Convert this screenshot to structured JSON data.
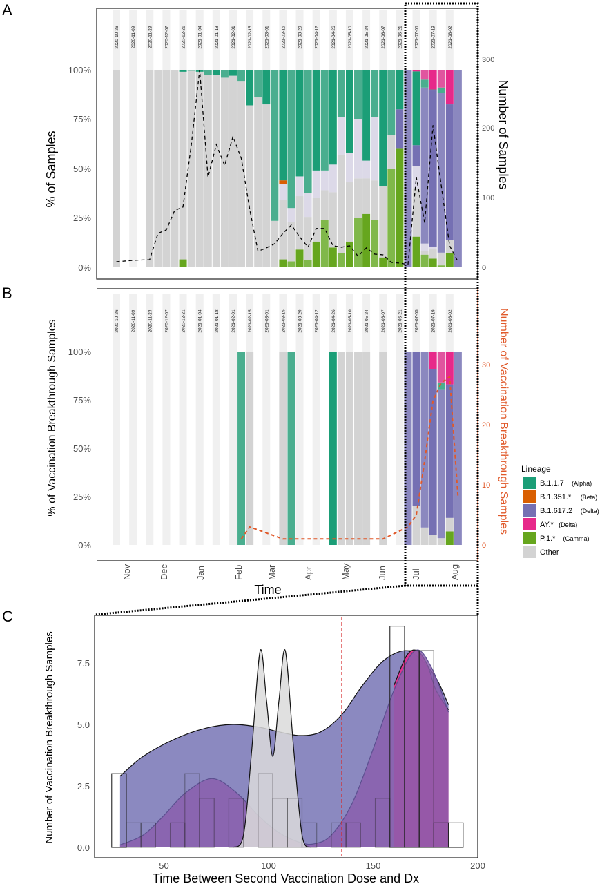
{
  "colors": {
    "alpha": "#1b9e77",
    "beta": "#d95f02",
    "delta": "#7570b3",
    "ay": "#e7298a",
    "gamma": "#66a61e",
    "other": "#d3d3d3",
    "unlabeled": "#dcd9e8",
    "stripe": "#f0f0f0",
    "count_line_b": "#e0592a",
    "delta_density": "#8b89c0",
    "second_density": "#8a5fad",
    "cutoff_line": "#d62728"
  },
  "panels": {
    "a": "A",
    "b": "B",
    "c": "C"
  },
  "chart_data": [
    {
      "type": "bar",
      "stacked": true,
      "panel": "A",
      "ylabel": "% of Samples",
      "y2label": "Number of Samples",
      "ylim": [
        0,
        100
      ],
      "y2lim": [
        0,
        300
      ],
      "yticks": [
        "0%",
        "25%",
        "50%",
        "75%",
        "100%"
      ],
      "y2ticks": [
        "0",
        "100",
        "200",
        "300"
      ],
      "week_labels": [
        "2020-10-26",
        "2020-11-09",
        "2020-11-23",
        "2020-12-07",
        "2020-12-21",
        "2021-01-04",
        "2021-01-18",
        "2021-02-01",
        "2021-02-15",
        "2021-03-01",
        "2021-03-15",
        "2021-03-29",
        "2021-04-12",
        "2021-04-26",
        "2021-05-10",
        "2021-05-24",
        "2021-06-07",
        "2021-06-21",
        "2021-07-05",
        "2021-07-19",
        "2021-08-02"
      ],
      "stack_order": [
        "gamma",
        "other",
        "unlabeled",
        "delta",
        "beta",
        "alpha",
        "ay"
      ],
      "weeks": [
        {
          "other": 100
        },
        null,
        null,
        null,
        {
          "other": 100
        },
        {
          "other": 100
        },
        {
          "other": 100
        },
        {
          "other": 100
        },
        {
          "gamma": 4,
          "other": 95,
          "alpha": 1
        },
        {
          "other": 99.5,
          "alpha": 0.5
        },
        {
          "other": 99,
          "alpha": 1
        },
        {
          "other": 97.5,
          "alpha": 2.5
        },
        {
          "other": 97.5,
          "alpha": 2.5
        },
        {
          "other": 96,
          "alpha": 4
        },
        {
          "other": 97,
          "alpha": 3
        },
        {
          "other": 94,
          "alpha": 6
        },
        {
          "other": 82,
          "alpha": 18
        },
        {
          "other": 86,
          "alpha": 14
        },
        {
          "other": 82.5,
          "alpha": 17.5
        },
        {
          "other": 23.5,
          "alpha": 76.5
        },
        {
          "gamma": 4,
          "other": 30,
          "unlabeled": 8,
          "beta": 2,
          "alpha": 56
        },
        {
          "gamma": 3,
          "other": 20,
          "unlabeled": 7,
          "alpha": 70
        },
        {
          "gamma": 9,
          "other": 27,
          "unlabeled": 10,
          "alpha": 54
        },
        {
          "gamma": 3.5,
          "other": 22,
          "unlabeled": 12,
          "alpha": 62.5
        },
        {
          "gamma": 13,
          "other": 22,
          "unlabeled": 14,
          "alpha": 51
        },
        {
          "gamma": 24,
          "other": 15,
          "unlabeled": 10,
          "alpha": 51
        },
        {
          "gamma": 10,
          "other": 28,
          "unlabeled": 14,
          "alpha": 48
        },
        {
          "gamma": 7,
          "other": 50,
          "unlabeled": 19,
          "alpha": 24
        },
        {
          "gamma": 13,
          "other": 30,
          "unlabeled": 15,
          "alpha": 42
        },
        {
          "gamma": 25,
          "other": 20,
          "unlabeled": 30,
          "alpha": 25
        },
        {
          "gamma": 27,
          "other": 18,
          "unlabeled": 9,
          "alpha": 46
        },
        {
          "gamma": 24,
          "other": 20,
          "unlabeled": 32,
          "alpha": 24
        },
        {
          "gamma": 5,
          "other": 36,
          "alpha": 59
        },
        {
          "gamma": 50,
          "other": 17,
          "alpha": 33
        },
        {
          "gamma": 60,
          "delta": 20,
          "alpha": 20
        },
        {
          "delta": 100
        },
        {
          "gamma": 15.5,
          "other": 24.5,
          "delta": 10.5,
          "unlabeled": 11.3,
          "alpha": 37.4,
          "ay": 0.8
        },
        {
          "gamma": 6.4,
          "other": 2,
          "delta": 79,
          "unlabeled": 3.6,
          "alpha": 4,
          "ay": 5
        },
        {
          "gamma": 4.4,
          "other": 4.7,
          "delta": 79,
          "unlabeled": 1.4,
          "alpha": 0.5,
          "ay": 10
        },
        {
          "gamma": 1,
          "other": 6.4,
          "delta": 81,
          "alpha": 2.6,
          "ay": 9
        },
        {
          "gamma": 7,
          "other": 6.8,
          "delta": 68.7,
          "ay": 17.5
        },
        {
          "delta": 100
        }
      ],
      "counts": [
        8,
        null,
        10,
        null,
        11,
        49,
        54,
        82,
        87,
        177,
        285,
        130,
        177,
        147,
        189,
        157,
        84,
        23,
        28,
        34,
        49,
        61,
        44,
        29,
        56,
        56,
        31,
        29,
        31,
        16,
        28,
        19,
        18,
        7,
        6,
        4,
        130,
        64,
        205,
        117,
        31,
        8
      ]
    },
    {
      "type": "bar",
      "stacked": true,
      "panel": "B",
      "ylabel": "% of Vaccination Breakthrough Samples",
      "y2label": "Number of Vaccination Breakthrough Samples",
      "xlabel": "Time",
      "ylim": [
        0,
        100
      ],
      "y2lim": [
        0,
        30
      ],
      "yticks": [
        "0%",
        "25%",
        "50%",
        "75%",
        "100%"
      ],
      "y2ticks": [
        "0",
        "10",
        "20",
        "30"
      ],
      "month_labels": [
        "Nov",
        "Dec",
        "Jan",
        "Feb",
        "Mar",
        "Apr",
        "May",
        "Jun",
        "Jul",
        "Aug"
      ],
      "weeks": {
        "15": {
          "alpha": 100
        },
        "16": {
          "other": 100
        },
        "20": {
          "other": 100
        },
        "21": {
          "alpha": 100
        },
        "26": {
          "alpha": 100
        },
        "27": {
          "other": 100
        },
        "28": {
          "other": 100
        },
        "29": {
          "other": 100
        },
        "30": {
          "other": 100
        },
        "32": {
          "other": 100
        },
        "35": {
          "delta": 100
        },
        "36": {
          "other": 20,
          "delta": 80
        },
        "37": {
          "other": 9,
          "delta": 91
        },
        "38": {
          "other": 5,
          "delta": 86,
          "ay": 9
        },
        "39": {
          "other": 3.5,
          "delta": 77,
          "alpha": 3.5,
          "ay": 16
        },
        "40": {
          "gamma": 7,
          "other": 7,
          "delta": 69,
          "ay": 17
        },
        "41": {
          "delta": 100
        }
      },
      "counts": {
        "15": 1,
        "16": 3,
        "20": 1,
        "21": 1,
        "26": 1,
        "27": 1,
        "28": 1,
        "29": 1,
        "30": 1,
        "32": 1,
        "35": 3,
        "36": 5,
        "37": 14,
        "38": 24,
        "39": 27,
        "40": 28,
        "41": 8
      }
    },
    {
      "type": "area",
      "panel": "C",
      "xlabel": "Time Between Second Vaccination Dose and Dx",
      "ylabel": "Number of Vaccination Breakthrough Samples",
      "xlim": [
        20,
        200
      ],
      "ylim": [
        0,
        9.3
      ],
      "xticks": [
        "50",
        "100",
        "150",
        "200"
      ],
      "yticks": [
        "0.0",
        "2.5",
        "5.0",
        "7.5"
      ],
      "histogram": {
        "bin_start": 25,
        "bin_width": 7,
        "counts": [
          3,
          1,
          1,
          0,
          1,
          3,
          2,
          0,
          2,
          0,
          3,
          2,
          2,
          1,
          0,
          1,
          1,
          0,
          2,
          9,
          8,
          8,
          1,
          1
        ]
      },
      "densities": {
        "delta": [
          [
            29,
            2.9
          ],
          [
            40,
            3.7
          ],
          [
            55,
            4.4
          ],
          [
            70,
            4.85
          ],
          [
            83,
            5.0
          ],
          [
            95,
            4.9
          ],
          [
            105,
            4.7
          ],
          [
            115,
            4.55
          ],
          [
            125,
            4.7
          ],
          [
            135,
            5.4
          ],
          [
            145,
            6.6
          ],
          [
            155,
            7.6
          ],
          [
            165,
            8.0
          ],
          [
            172,
            7.7
          ],
          [
            180,
            6.9
          ],
          [
            186,
            5.8
          ]
        ],
        "ay": [
          [
            160,
            6.6
          ],
          [
            166,
            7.8
          ],
          [
            171,
            8.0
          ],
          [
            176,
            7.4
          ],
          [
            180,
            6.4
          ],
          [
            186,
            5.6
          ]
        ],
        "second": [
          [
            29,
            0.1
          ],
          [
            40,
            0.5
          ],
          [
            50,
            1.3
          ],
          [
            60,
            2.2
          ],
          [
            73,
            2.8
          ],
          [
            85,
            2.2
          ],
          [
            95,
            1.3
          ],
          [
            105,
            0.6
          ],
          [
            115,
            0.2
          ],
          [
            122,
            0.15
          ],
          [
            130,
            0.5
          ],
          [
            140,
            1.8
          ],
          [
            150,
            4.0
          ],
          [
            160,
            6.4
          ],
          [
            170,
            8.0
          ],
          [
            178,
            7.3
          ],
          [
            186,
            5.5
          ]
        ],
        "other": [
          [
            83,
            0
          ],
          [
            88,
            0.5
          ],
          [
            92,
            4
          ],
          [
            96,
            8
          ],
          [
            99,
            6
          ],
          [
            102,
            3.7
          ],
          [
            105,
            6
          ],
          [
            108,
            8
          ],
          [
            112,
            4
          ],
          [
            116,
            0.5
          ],
          [
            120,
            0
          ]
        ]
      },
      "cutoff_x": 135
    }
  ],
  "legend": {
    "title": "Lineage",
    "items": [
      {
        "key": "alpha",
        "label": "B.1.1.7",
        "sub": "(Alpha)"
      },
      {
        "key": "beta",
        "label": "B.1.351.*",
        "sub": "(Beta)"
      },
      {
        "key": "delta",
        "label": "B.1.617.2",
        "sub": "(Delta)"
      },
      {
        "key": "ay",
        "label": "AY.*",
        "sub": "(Delta)"
      },
      {
        "key": "gamma",
        "label": "P.1.*",
        "sub": "(Gamma)"
      },
      {
        "key": "other",
        "label": "Other",
        "sub": ""
      }
    ]
  }
}
